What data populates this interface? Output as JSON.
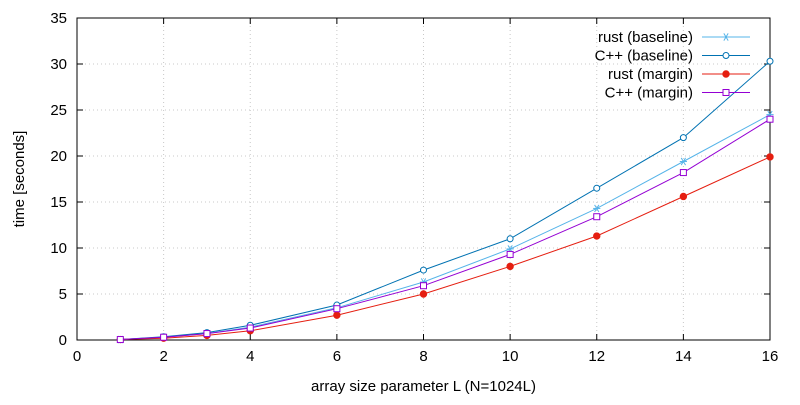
{
  "chart_data": {
    "type": "line",
    "title": "",
    "xlabel": "array size parameter L (N=1024L)",
    "ylabel": "time [seconds]",
    "xlim": [
      0,
      16
    ],
    "ylim": [
      0,
      35
    ],
    "xticks": [
      0,
      2,
      4,
      6,
      8,
      10,
      12,
      14,
      16
    ],
    "yticks": [
      0,
      5,
      10,
      15,
      20,
      25,
      30,
      35
    ],
    "grid": true,
    "legend_position": "top-right",
    "x": [
      1,
      2,
      3,
      4,
      6,
      8,
      10,
      12,
      14,
      16
    ],
    "series": [
      {
        "name": "rust (baseline)",
        "marker": "asterisk",
        "color": "#56b4e9",
        "values": [
          0.05,
          0.3,
          0.7,
          1.4,
          3.5,
          6.3,
          9.9,
          14.3,
          19.4,
          24.5
        ]
      },
      {
        "name": "C++ (baseline)",
        "marker": "circle-open",
        "color": "#0072b2",
        "values": [
          0.05,
          0.35,
          0.8,
          1.6,
          3.8,
          7.6,
          11.0,
          16.5,
          22.0,
          30.3
        ]
      },
      {
        "name": "rust (margin)",
        "marker": "circle-filled",
        "color": "#e51e10",
        "values": [
          0.05,
          0.2,
          0.5,
          1.0,
          2.7,
          5.0,
          8.0,
          11.3,
          15.6,
          19.9
        ]
      },
      {
        "name": "C++ (margin)",
        "marker": "square-open",
        "color": "#9400d3",
        "values": [
          0.05,
          0.3,
          0.7,
          1.3,
          3.4,
          5.9,
          9.3,
          13.4,
          18.2,
          24.0
        ]
      }
    ]
  }
}
